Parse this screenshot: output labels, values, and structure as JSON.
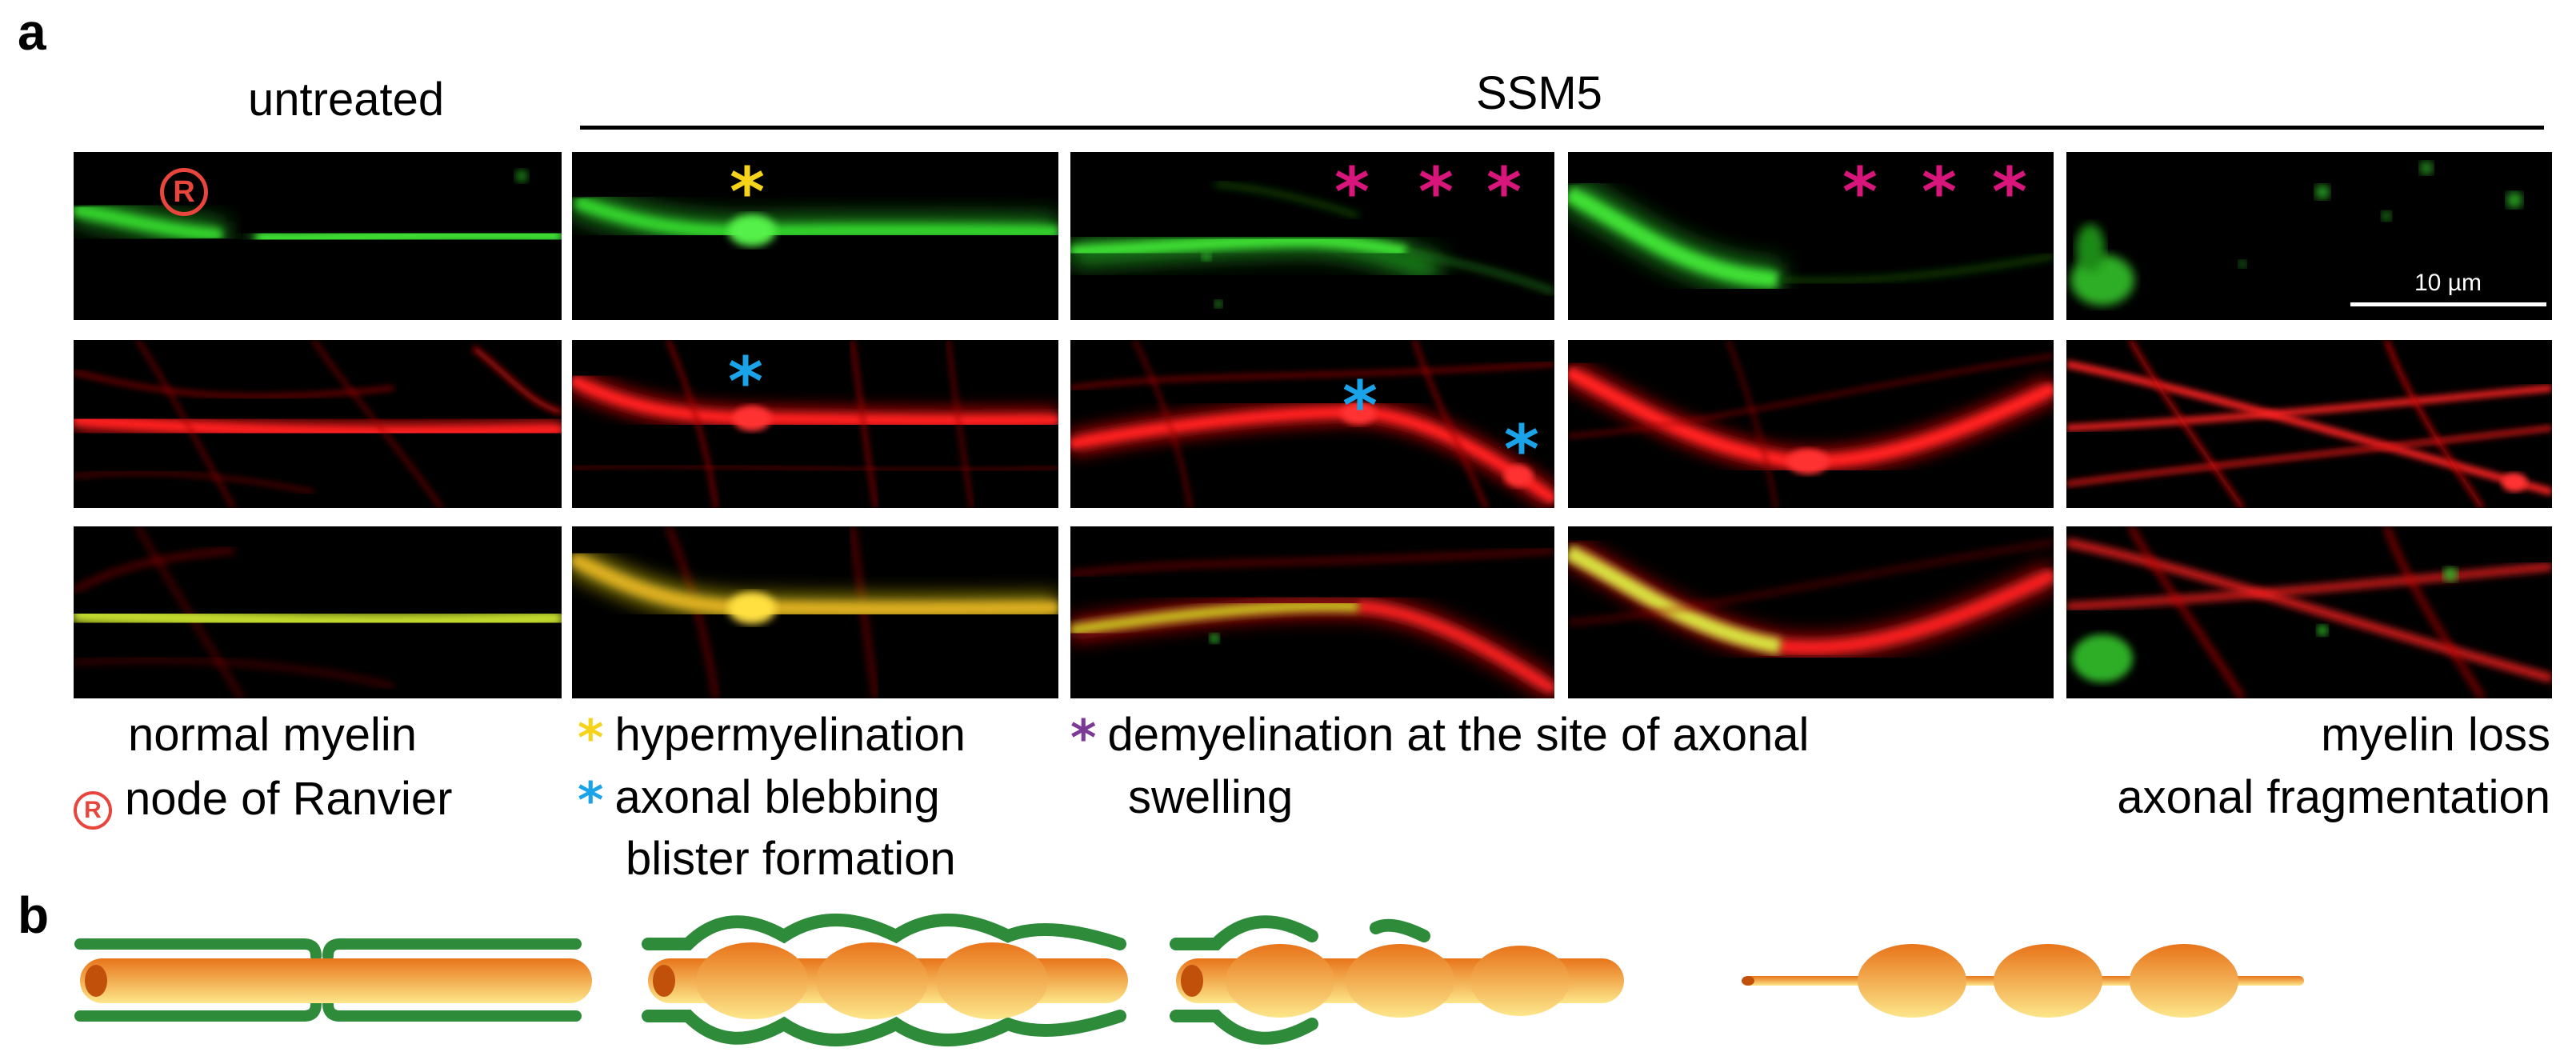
{
  "panel_a": {
    "letter": "a",
    "header_untreated": "untreated",
    "header_treatment": "SSM5",
    "scale_bar_label": "10 µm",
    "colors": {
      "green": "#22c31e",
      "red": "#e01010",
      "yellow_mark": "#f5d31a",
      "cyan_mark": "#1aa3e8",
      "magenta_mark": "#d8157a",
      "purple_mark": "#7b3a96",
      "ranvier_mark": "#e8453c"
    },
    "ranvier_symbol": "R",
    "asterisk": "*",
    "captions": {
      "col1_line1": "normal myelin",
      "col1_line2": "node of Ranvier",
      "col2_line1": "hypermyelination",
      "col2_line2": "axonal blebbing",
      "col2_line3": "blister formation",
      "col3_line1": "demyelination at the site of axonal",
      "col3_line2": "swelling",
      "col5_line1": "myelin loss",
      "col5_line2": "axonal fragmentation"
    }
  },
  "panel_b": {
    "letter": "b",
    "colors": {
      "myelin": "#2e8b3a",
      "axon_light": "#fde68a",
      "axon_dark": "#e8741a"
    }
  }
}
